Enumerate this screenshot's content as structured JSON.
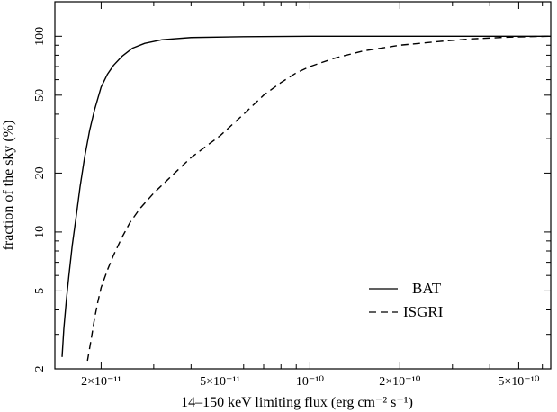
{
  "chart_data": {
    "type": "line",
    "xlabel": "14–150 keV limiting flux (erg cm⁻² s⁻¹)",
    "ylabel": "fraction of the sky (%)",
    "xscale": "log",
    "yscale": "log",
    "xlim": [
      1.4e-11,
      6.4e-10
    ],
    "ylim": [
      2,
      150
    ],
    "xticks": [
      {
        "value": 2e-11,
        "label": "2×10⁻¹¹"
      },
      {
        "value": 5e-11,
        "label": "5×10⁻¹¹"
      },
      {
        "value": 1e-10,
        "label": "10⁻¹⁰"
      },
      {
        "value": 2e-10,
        "label": "2×10⁻¹⁰"
      },
      {
        "value": 5e-10,
        "label": "5×10⁻¹⁰"
      }
    ],
    "yticks": [
      {
        "value": 2,
        "label": "2"
      },
      {
        "value": 5,
        "label": "5"
      },
      {
        "value": 10,
        "label": "10"
      },
      {
        "value": 20,
        "label": "20"
      },
      {
        "value": 50,
        "label": "50"
      },
      {
        "value": 100,
        "label": "100"
      }
    ],
    "grid": false,
    "legend_position": "lower-right",
    "series": [
      {
        "name": "BAT",
        "style": "solid",
        "x": [
          1.48e-11,
          1.5e-11,
          1.53e-11,
          1.56e-11,
          1.6e-11,
          1.65e-11,
          1.7e-11,
          1.76e-11,
          1.83e-11,
          1.9e-11,
          2e-11,
          2.1e-11,
          2.2e-11,
          2.35e-11,
          2.55e-11,
          2.8e-11,
          3.2e-11,
          4e-11,
          6e-11,
          1e-10,
          2e-10,
          3.5e-10,
          6.4e-10
        ],
        "y": [
          2.3,
          3.2,
          4.5,
          6.0,
          8.5,
          12,
          17,
          24,
          33,
          42,
          55,
          64,
          71,
          79,
          87,
          92,
          96,
          98.5,
          99.5,
          100,
          100,
          100,
          100
        ]
      },
      {
        "name": "ISGRI",
        "style": "dashed",
        "x": [
          1.8e-11,
          1.85e-11,
          1.9e-11,
          1.95e-11,
          2e-11,
          2.1e-11,
          2.2e-11,
          2.35e-11,
          2.5e-11,
          2.7e-11,
          3e-11,
          3.5e-11,
          4e-11,
          5e-11,
          6e-11,
          7e-11,
          8e-11,
          9e-11,
          1e-10,
          1.2e-10,
          1.5e-10,
          2e-10,
          2.7e-10,
          3.5e-10,
          4.5e-10,
          5.5e-10,
          6.4e-10
        ],
        "y": [
          2.2,
          2.8,
          3.6,
          4.4,
          5.2,
          6.4,
          7.6,
          9.4,
          11.2,
          13.2,
          15.8,
          19.8,
          24,
          31,
          40,
          50,
          58,
          65,
          70,
          77,
          84,
          90,
          94,
          97,
          98.8,
          99.6,
          100
        ]
      }
    ]
  }
}
